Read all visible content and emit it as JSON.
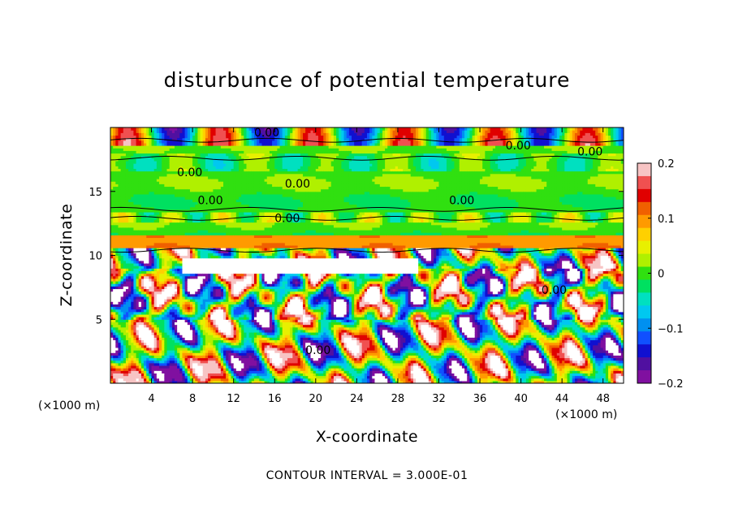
{
  "chart_data": {
    "type": "heatmap",
    "title": "disturbunce of potential temperature",
    "xlabel": "X-coordinate",
    "ylabel": "Z-coordinate",
    "x_unit": "(×1000 m)",
    "y_unit": "(×1000 m)",
    "xlim": [
      0,
      50
    ],
    "ylim": [
      0,
      20
    ],
    "xticks": [
      4,
      8,
      12,
      16,
      20,
      24,
      28,
      32,
      36,
      40,
      44,
      48
    ],
    "yticks": [
      5,
      10,
      15
    ],
    "colorbar": {
      "vmin": -0.2,
      "vmax": 0.2,
      "tick_values": [
        0.2,
        0.1,
        0,
        -0.1,
        -0.2
      ],
      "tick_labels": [
        "0.2",
        "0.1",
        "0",
        "−0.1",
        "−0.2"
      ],
      "colors": [
        "#f7c4c4",
        "#f05050",
        "#e00000",
        "#f06000",
        "#ff9a00",
        "#ffd000",
        "#e8f000",
        "#b0f000",
        "#30e010",
        "#00e060",
        "#00e0c0",
        "#00c8f0",
        "#0090f0",
        "#1050ff",
        "#1010d0",
        "#5010a0",
        "#8010a0"
      ]
    },
    "contour_labels": [
      "0.00",
      "0.00",
      "0.00",
      "0.00",
      "0.00",
      "0.00",
      "0.00",
      "0.00",
      "0.00",
      "0.00"
    ],
    "footnote": "CONTOUR INTERVAL = 3.000E-01"
  }
}
